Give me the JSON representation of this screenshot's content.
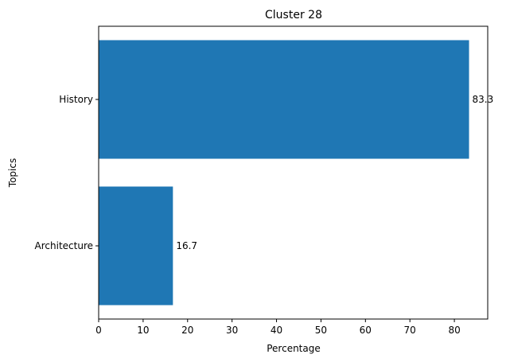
{
  "chart_data": {
    "type": "bar",
    "orientation": "horizontal",
    "title": "Cluster 28",
    "xlabel": "Percentage",
    "ylabel": "Topics",
    "categories": [
      "History",
      "Architecture"
    ],
    "values": [
      83.3,
      16.7
    ],
    "data_labels": [
      "83.3",
      "16.7"
    ],
    "xlim": [
      0,
      87.5
    ],
    "xticks": [
      0,
      10,
      20,
      30,
      40,
      50,
      60,
      70,
      80
    ],
    "bar_color": "#1f77b4",
    "grid": false,
    "legend": "none"
  }
}
